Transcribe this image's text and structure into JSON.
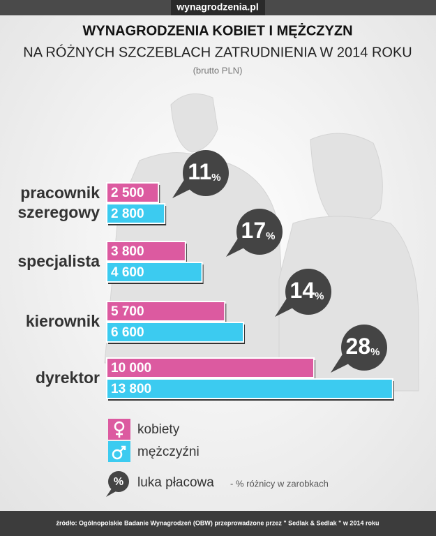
{
  "header": {
    "site": "wynagrodzenia.pl"
  },
  "chart_data": {
    "type": "bar",
    "orientation": "horizontal",
    "title": "WYNAGRODZENIA KOBIET I MĘŻCZYZN",
    "subtitle": "NA RÓŻNYCH SZCZEBLACH ZATRUDNIENIA W 2014 ROKU",
    "unit_note": "(brutto PLN)",
    "categories": [
      "pracownik szeregowy",
      "specjalista",
      "kierownik",
      "dyrektor"
    ],
    "series": [
      {
        "name": "kobiety",
        "color": "#dc5aa0",
        "values": [
          2500,
          3800,
          5700,
          10000
        ],
        "value_labels": [
          "2 500",
          "3 800",
          "5 700",
          "10 000"
        ]
      },
      {
        "name": "mężczyźni",
        "color": "#3ccbf0",
        "values": [
          2800,
          4600,
          6600,
          13800
        ],
        "value_labels": [
          "2 800",
          "4 600",
          "6 600",
          "13 800"
        ]
      }
    ],
    "annotations": [
      "11%",
      "17%",
      "14%",
      "28%"
    ],
    "gap_legend": {
      "icon": "%",
      "label": "luka płacowa",
      "note": "- % różnicy w zarobkach"
    }
  },
  "footer": {
    "source": "źródło: Ogólnopolskie Badanie Wynagrodzeń (OBW) przeprowadzone przez \" Sedlak & Sedlak \" w 2014 roku"
  }
}
